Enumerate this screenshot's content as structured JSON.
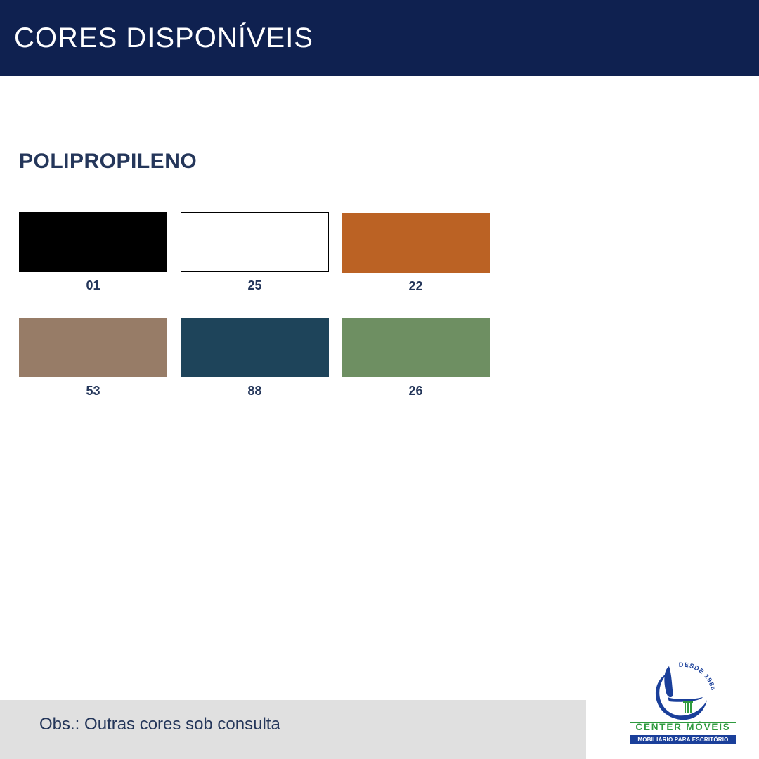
{
  "header": {
    "title": "CORES DISPONÍVEIS",
    "background": "#0f2150"
  },
  "section": {
    "title": "POLIPROPILENO"
  },
  "swatches": [
    {
      "code": "01",
      "color": "#000000"
    },
    {
      "code": "25",
      "color": "#ffffff"
    },
    {
      "code": "22",
      "color": "#bb6224"
    },
    {
      "code": "53",
      "color": "#977c67"
    },
    {
      "code": "88",
      "color": "#1e445a"
    },
    {
      "code": "26",
      "color": "#6e8f62"
    }
  ],
  "footer": {
    "note": "Obs.: Outras cores sob consulta"
  },
  "logo": {
    "since": "DESDE 1988",
    "name": "CENTER MÓVEIS",
    "tagline": "MOBILIÁRIO PARA ESCRITÓRIO",
    "primary_color": "#1a3f9a",
    "secondary_color": "#2e9a3e"
  }
}
